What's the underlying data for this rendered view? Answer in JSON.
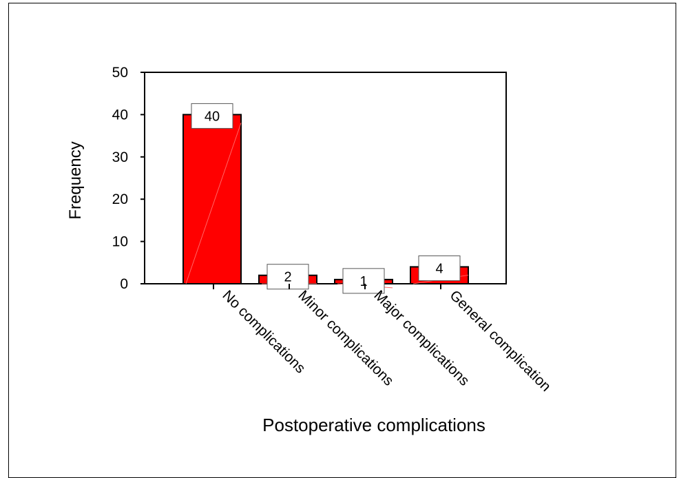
{
  "chart_data": {
    "type": "bar",
    "categories": [
      "No complications",
      "Minor complications",
      "Major complications",
      "General complication"
    ],
    "values": [
      40,
      2,
      1,
      4
    ],
    "data_labels": [
      "40",
      "2",
      "1",
      "4"
    ],
    "xlabel": "Postoperative complications",
    "ylabel": "Frequency",
    "ylim": [
      0,
      50
    ],
    "yticks": [
      "0",
      "10",
      "20",
      "30",
      "40",
      "50"
    ],
    "grid": false,
    "legend": "none",
    "bar_color": "#ff0000",
    "bar_edge_color": "#000000"
  }
}
